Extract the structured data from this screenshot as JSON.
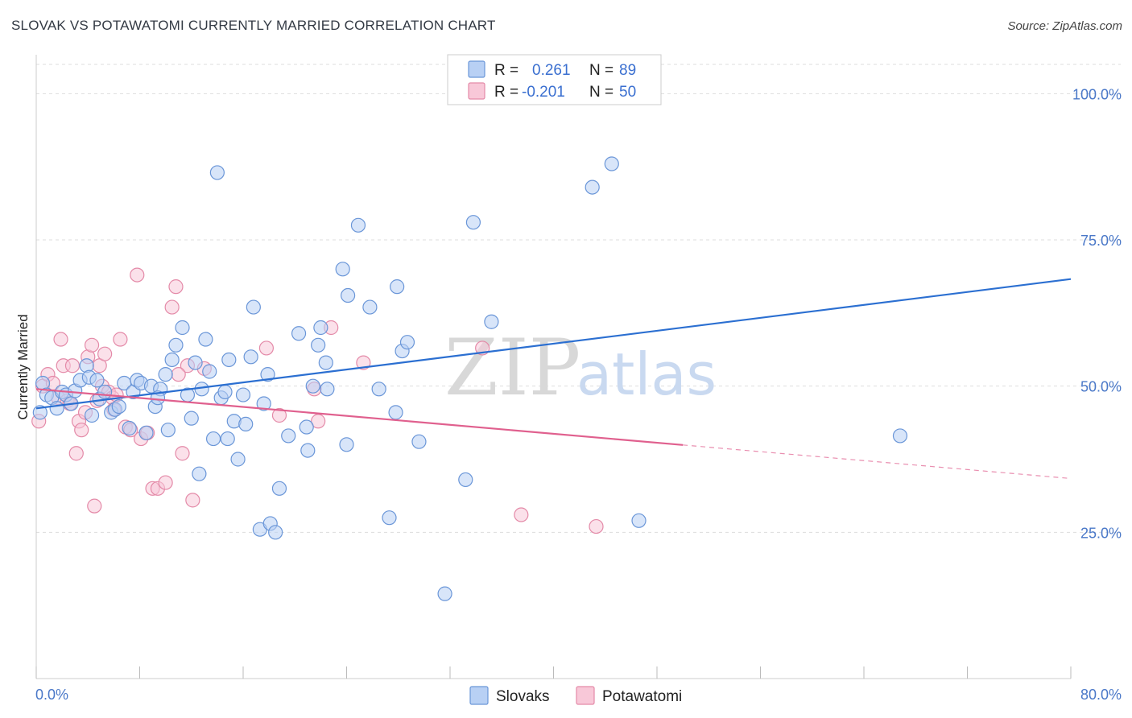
{
  "title": "SLOVAK VS POTAWATOMI CURRENTLY MARRIED CORRELATION CHART",
  "source": "Source: ZipAtlas.com",
  "watermark": {
    "zip": "ZIP",
    "atlas": "atlas"
  },
  "colors": {
    "slovak_fill": "#b8d0f4",
    "slovak_stroke": "#6a96d8",
    "slovak_line": "#2b6fd1",
    "pota_fill": "#f8c8d8",
    "pota_stroke": "#e48aa8",
    "pota_line": "#e0608e",
    "grid": "#dddddd",
    "tick_label": "#4a78c8"
  },
  "legend": {
    "rows": [
      {
        "r_label": "R =",
        "r_value": "0.261",
        "n_label": "N =",
        "n_value": "89"
      },
      {
        "r_label": "R =",
        "r_value": "-0.201",
        "n_label": "N =",
        "n_value": "50"
      }
    ]
  },
  "chart_data": {
    "type": "scatter",
    "title": "SLOVAK VS POTAWATOMI CURRENTLY MARRIED CORRELATION CHART",
    "xlabel": "",
    "ylabel": "Currently Married",
    "xlim": [
      0,
      80
    ],
    "ylim": [
      0,
      105
    ],
    "x_tick_labels": [
      "0.0%",
      "80.0%"
    ],
    "y_ticks": [
      25,
      50,
      75,
      100
    ],
    "y_tick_labels": [
      "25.0%",
      "50.0%",
      "75.0%",
      "100.0%"
    ],
    "grid": true,
    "legend_position": "top-center",
    "series": [
      {
        "name": "Slovaks",
        "r": 0.261,
        "n": 89,
        "trend": {
          "x": [
            0,
            80
          ],
          "y": [
            46.2,
            68.3
          ],
          "dashed_from": null
        },
        "points": [
          [
            0.3,
            45.5
          ],
          [
            0.5,
            50.5
          ],
          [
            0.8,
            48.5
          ],
          [
            1.2,
            48.0
          ],
          [
            1.6,
            46.2
          ],
          [
            2.0,
            49.0
          ],
          [
            2.3,
            48.5
          ],
          [
            2.7,
            47.0
          ],
          [
            3.0,
            49.2
          ],
          [
            3.4,
            51.0
          ],
          [
            3.9,
            53.5
          ],
          [
            4.1,
            51.5
          ],
          [
            4.7,
            51.0
          ],
          [
            4.9,
            47.8
          ],
          [
            5.3,
            49.0
          ],
          [
            5.8,
            45.5
          ],
          [
            6.1,
            46.0
          ],
          [
            6.4,
            46.5
          ],
          [
            6.8,
            50.5
          ],
          [
            7.2,
            42.8
          ],
          [
            7.5,
            49.0
          ],
          [
            7.8,
            51.0
          ],
          [
            8.1,
            50.5
          ],
          [
            8.5,
            42.0
          ],
          [
            8.9,
            50.0
          ],
          [
            9.2,
            46.5
          ],
          [
            9.6,
            49.5
          ],
          [
            10.0,
            52.0
          ],
          [
            10.2,
            42.5
          ],
          [
            10.5,
            54.5
          ],
          [
            10.8,
            57.0
          ],
          [
            11.3,
            60.0
          ],
          [
            11.7,
            48.5
          ],
          [
            12.0,
            44.5
          ],
          [
            12.3,
            54.0
          ],
          [
            12.6,
            35.0
          ],
          [
            12.8,
            49.5
          ],
          [
            13.1,
            58.0
          ],
          [
            13.4,
            52.5
          ],
          [
            13.7,
            41.0
          ],
          [
            14.0,
            86.5
          ],
          [
            14.3,
            48.0
          ],
          [
            14.6,
            49.0
          ],
          [
            14.9,
            54.5
          ],
          [
            15.3,
            44.0
          ],
          [
            15.6,
            37.5
          ],
          [
            16.0,
            48.5
          ],
          [
            16.2,
            43.5
          ],
          [
            16.6,
            55.0
          ],
          [
            16.8,
            63.5
          ],
          [
            17.3,
            25.5
          ],
          [
            17.6,
            47.0
          ],
          [
            17.9,
            52.0
          ],
          [
            18.1,
            26.5
          ],
          [
            18.5,
            25.0
          ],
          [
            18.8,
            32.5
          ],
          [
            19.5,
            41.5
          ],
          [
            20.3,
            59.0
          ],
          [
            21.0,
            39.0
          ],
          [
            21.4,
            50.0
          ],
          [
            21.8,
            57.0
          ],
          [
            22.0,
            60.0
          ],
          [
            22.4,
            54.0
          ],
          [
            22.5,
            49.5
          ],
          [
            23.7,
            70.0
          ],
          [
            24.0,
            40.0
          ],
          [
            24.1,
            65.5
          ],
          [
            24.9,
            77.5
          ],
          [
            25.8,
            63.5
          ],
          [
            26.5,
            49.5
          ],
          [
            27.3,
            27.5
          ],
          [
            27.8,
            45.5
          ],
          [
            27.9,
            67.0
          ],
          [
            28.3,
            56.0
          ],
          [
            28.7,
            57.5
          ],
          [
            29.6,
            40.5
          ],
          [
            31.6,
            14.5
          ],
          [
            33.2,
            34.0
          ],
          [
            33.8,
            78.0
          ],
          [
            35.2,
            61.0
          ],
          [
            43.0,
            84.0
          ],
          [
            44.5,
            88.0
          ],
          [
            45.5,
            100.0
          ],
          [
            46.6,
            27.0
          ],
          [
            66.8,
            41.5
          ],
          [
            4.3,
            45.0
          ],
          [
            9.4,
            48.0
          ],
          [
            14.8,
            41.0
          ],
          [
            20.9,
            43.0
          ]
        ]
      },
      {
        "name": "Potawatomi",
        "r": -0.201,
        "n": 50,
        "trend": {
          "x": [
            0,
            80
          ],
          "y": [
            49.5,
            34.2
          ],
          "dashed_from": 50
        },
        "points": [
          [
            0.2,
            44.0
          ],
          [
            0.5,
            50.0
          ],
          [
            0.9,
            52.0
          ],
          [
            1.3,
            50.5
          ],
          [
            1.7,
            48.0
          ],
          [
            1.9,
            58.0
          ],
          [
            2.1,
            53.5
          ],
          [
            2.4,
            47.5
          ],
          [
            2.8,
            53.5
          ],
          [
            3.1,
            38.5
          ],
          [
            3.3,
            44.0
          ],
          [
            3.5,
            42.5
          ],
          [
            3.8,
            45.5
          ],
          [
            4.0,
            55.0
          ],
          [
            4.3,
            57.0
          ],
          [
            4.5,
            29.5
          ],
          [
            4.7,
            47.5
          ],
          [
            4.9,
            53.5
          ],
          [
            5.1,
            50.0
          ],
          [
            5.3,
            55.5
          ],
          [
            5.6,
            49.0
          ],
          [
            5.9,
            48.0
          ],
          [
            6.2,
            48.5
          ],
          [
            6.5,
            58.0
          ],
          [
            6.9,
            43.0
          ],
          [
            7.3,
            42.5
          ],
          [
            7.8,
            69.0
          ],
          [
            8.1,
            41.0
          ],
          [
            8.6,
            42.0
          ],
          [
            9.0,
            32.5
          ],
          [
            9.4,
            32.5
          ],
          [
            10.0,
            33.5
          ],
          [
            10.5,
            63.5
          ],
          [
            10.8,
            67.0
          ],
          [
            11.3,
            38.5
          ],
          [
            11.7,
            53.5
          ],
          [
            12.1,
            30.5
          ],
          [
            13.0,
            53.0
          ],
          [
            17.8,
            56.5
          ],
          [
            18.8,
            45.0
          ],
          [
            21.5,
            49.5
          ],
          [
            21.8,
            44.0
          ],
          [
            22.8,
            60.0
          ],
          [
            25.3,
            54.0
          ],
          [
            34.5,
            56.5
          ],
          [
            37.5,
            28.0
          ],
          [
            43.3,
            26.0
          ],
          [
            2.6,
            47.0
          ],
          [
            6.0,
            46.0
          ],
          [
            11.0,
            52.0
          ]
        ]
      }
    ]
  },
  "bottom_legend": {
    "items": [
      "Slovaks",
      "Potawatomi"
    ]
  }
}
